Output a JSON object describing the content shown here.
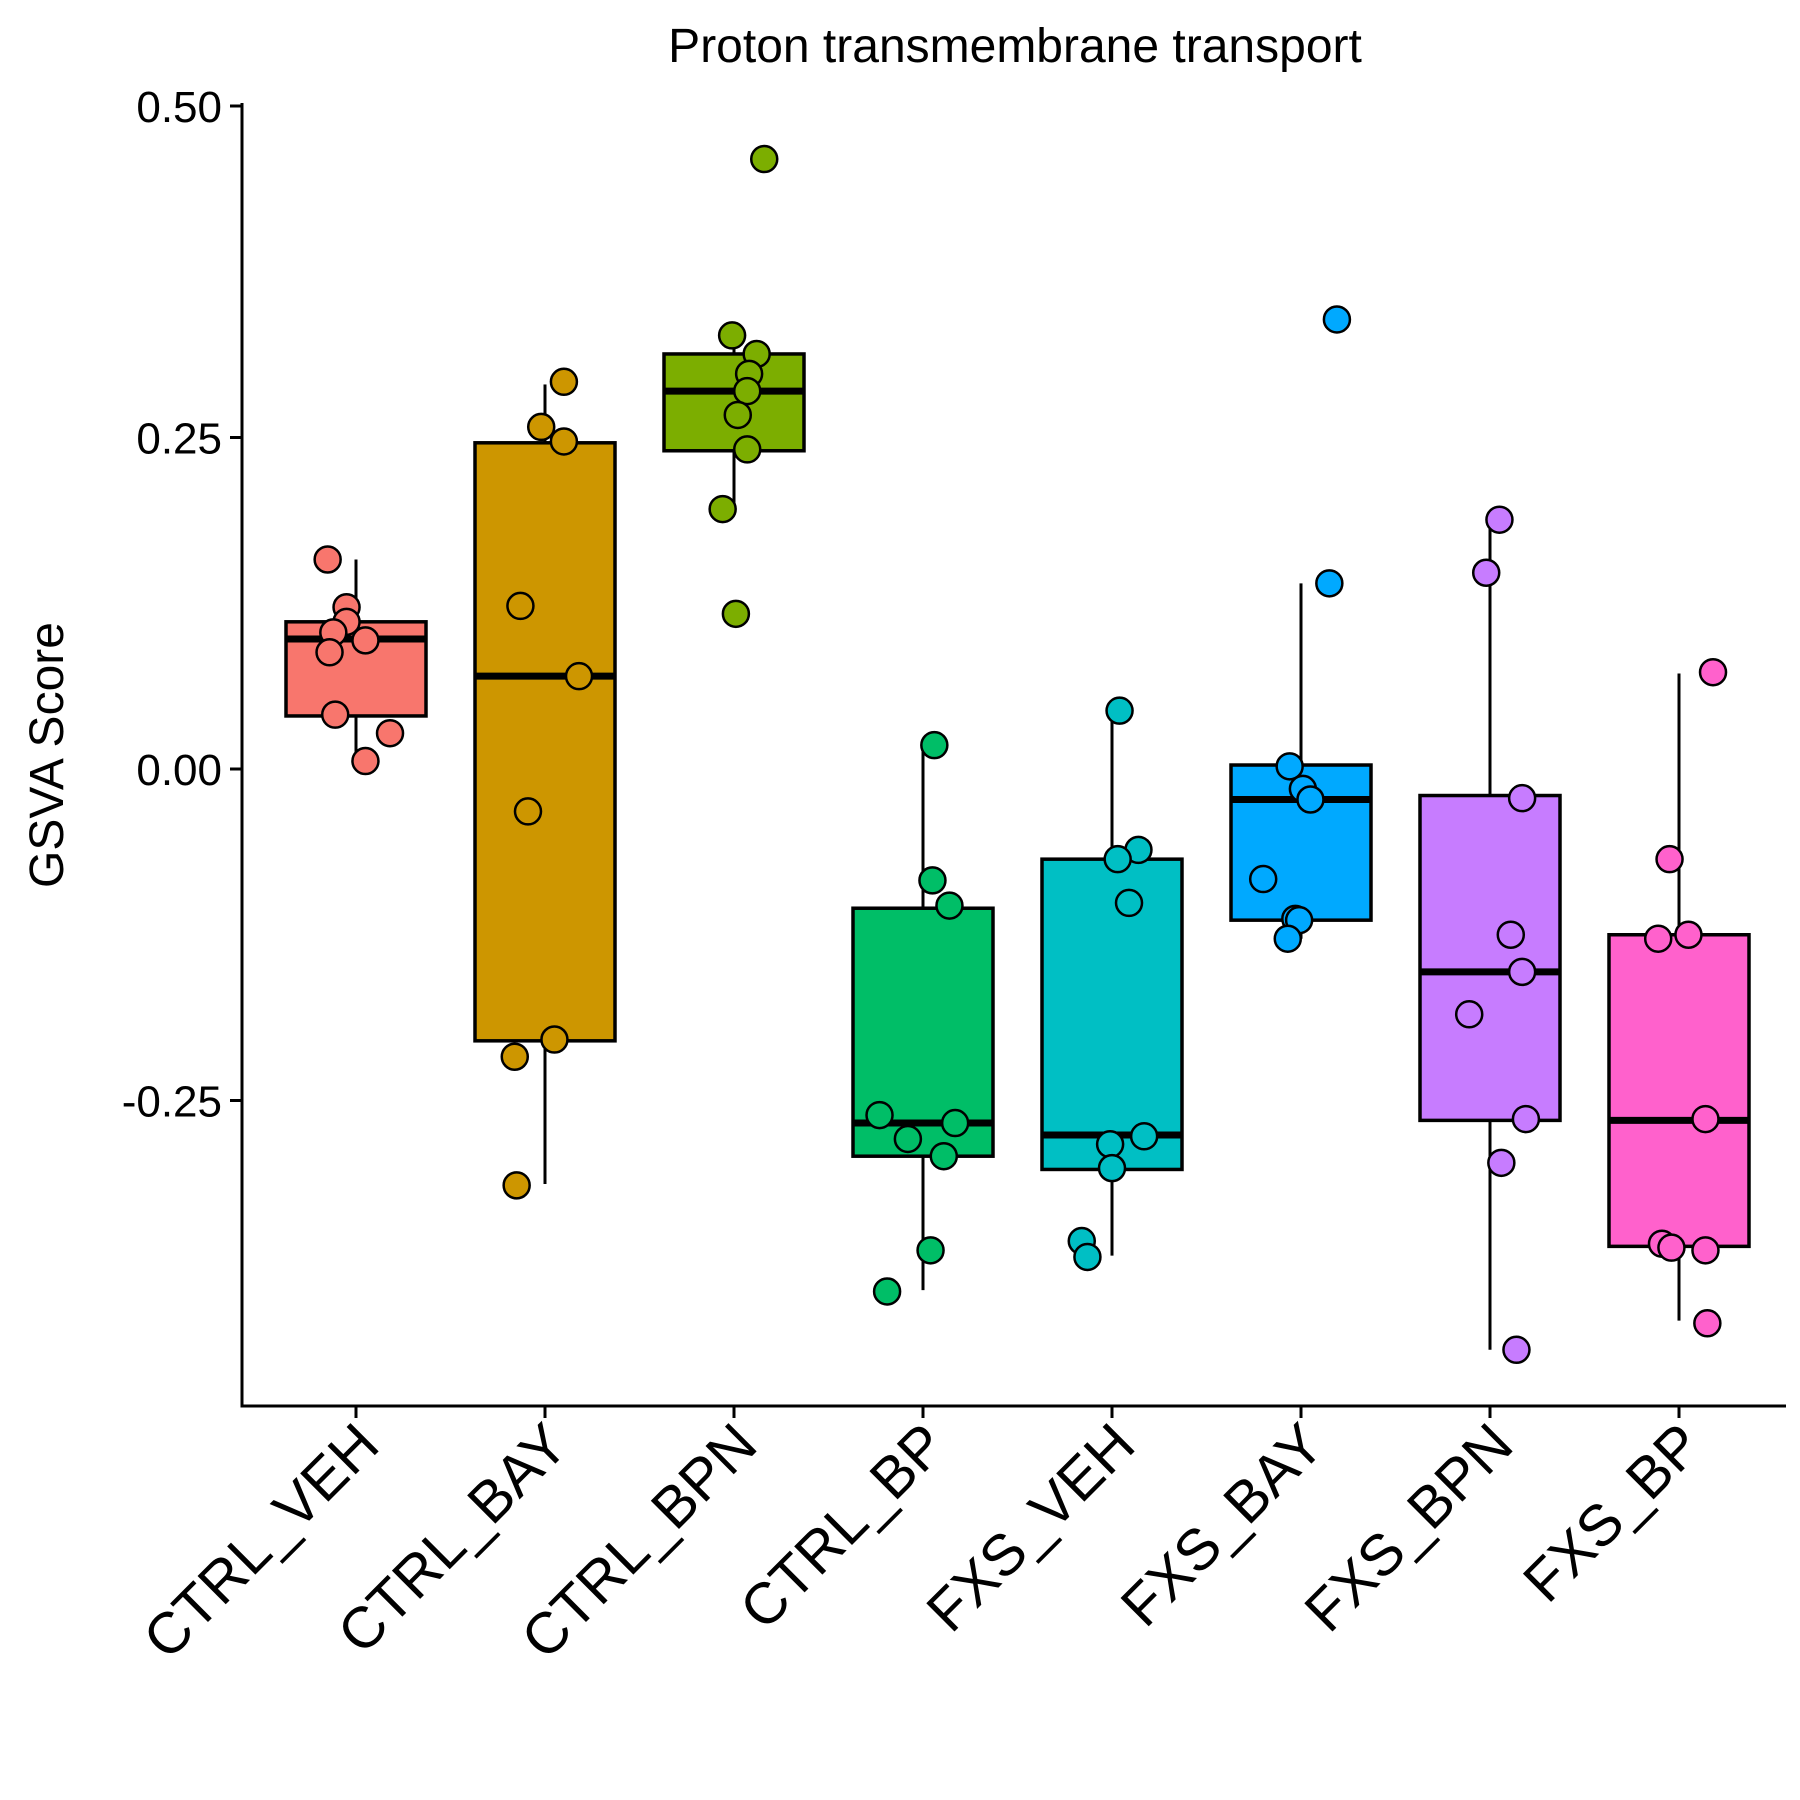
{
  "chart_data": {
    "type": "boxplot",
    "title": "Proton transmembrane transport",
    "xlabel": "",
    "ylabel": "GSVA Score",
    "ylim": [
      -0.48,
      0.5
    ],
    "yticks": [
      0.5,
      0.25,
      0.0,
      -0.25
    ],
    "ytick_labels": [
      "0.50",
      "0.25",
      "0.00",
      "-0.25"
    ],
    "grid": false,
    "legend": "none",
    "categories": [
      "CTRL_VEH",
      "CTRL_BAY",
      "CTRL_BPN",
      "CTRL_BP",
      "FXS_VEH",
      "FXS_BAY",
      "FXS_BPN",
      "FXS_BP"
    ],
    "colors": [
      "#F8766D",
      "#CD9600",
      "#7CAE00",
      "#00BE67",
      "#00BFC4",
      "#00A9FF",
      "#C77CFF",
      "#FF61CC"
    ],
    "boxes": [
      {
        "q1": 0.04,
        "median": 0.098,
        "q3": 0.111,
        "whisker_low": 0.008,
        "whisker_high": 0.158
      },
      {
        "q1": -0.205,
        "median": 0.07,
        "q3": 0.246,
        "whisker_low": -0.313,
        "whisker_high": 0.29
      },
      {
        "q1": 0.24,
        "median": 0.285,
        "q3": 0.313,
        "whisker_low": 0.195,
        "whisker_high": 0.33
      },
      {
        "q1": -0.292,
        "median": -0.267,
        "q3": -0.105,
        "whisker_low": -0.393,
        "whisker_high": 0.02
      },
      {
        "q1": -0.302,
        "median": -0.276,
        "q3": -0.068,
        "whisker_low": -0.367,
        "whisker_high": 0.045
      },
      {
        "q1": -0.114,
        "median": -0.023,
        "q3": 0.003,
        "whisker_low": -0.128,
        "whisker_high": 0.14
      },
      {
        "q1": -0.265,
        "median": -0.153,
        "q3": -0.02,
        "whisker_low": -0.438,
        "whisker_high": 0.188
      },
      {
        "q1": -0.36,
        "median": -0.265,
        "q3": -0.125,
        "whisker_low": -0.416,
        "whisker_high": 0.072
      }
    ],
    "points": [
      [
        {
          "dx": -0.15,
          "y": 0.158
        },
        {
          "dx": -0.05,
          "y": 0.122
        },
        {
          "dx": -0.05,
          "y": 0.111
        },
        {
          "dx": -0.12,
          "y": 0.103
        },
        {
          "dx": 0.05,
          "y": 0.097
        },
        {
          "dx": -0.14,
          "y": 0.088
        },
        {
          "dx": -0.11,
          "y": 0.041
        },
        {
          "dx": 0.18,
          "y": 0.027
        },
        {
          "dx": 0.05,
          "y": 0.006
        }
      ],
      [
        {
          "dx": 0.1,
          "y": 0.292
        },
        {
          "dx": -0.02,
          "y": 0.258
        },
        {
          "dx": 0.1,
          "y": 0.247
        },
        {
          "dx": -0.13,
          "y": 0.123
        },
        {
          "dx": 0.18,
          "y": 0.07
        },
        {
          "dx": -0.09,
          "y": -0.032
        },
        {
          "dx": 0.05,
          "y": -0.204
        },
        {
          "dx": -0.16,
          "y": -0.217
        },
        {
          "dx": -0.15,
          "y": -0.314
        }
      ],
      [
        {
          "dx": 0.16,
          "y": 0.46
        },
        {
          "dx": -0.01,
          "y": 0.327
        },
        {
          "dx": 0.12,
          "y": 0.313
        },
        {
          "dx": 0.08,
          "y": 0.298
        },
        {
          "dx": 0.07,
          "y": 0.285
        },
        {
          "dx": 0.02,
          "y": 0.267
        },
        {
          "dx": 0.07,
          "y": 0.241
        },
        {
          "dx": -0.06,
          "y": 0.196
        },
        {
          "dx": 0.01,
          "y": 0.117
        }
      ],
      [
        {
          "dx": 0.06,
          "y": 0.018
        },
        {
          "dx": 0.05,
          "y": -0.084
        },
        {
          "dx": 0.14,
          "y": -0.103
        },
        {
          "dx": -0.23,
          "y": -0.261
        },
        {
          "dx": 0.17,
          "y": -0.267
        },
        {
          "dx": -0.08,
          "y": -0.279
        },
        {
          "dx": 0.11,
          "y": -0.292
        },
        {
          "dx": 0.04,
          "y": -0.363
        },
        {
          "dx": -0.19,
          "y": -0.394
        }
      ],
      [
        {
          "dx": 0.04,
          "y": 0.044
        },
        {
          "dx": 0.14,
          "y": -0.061
        },
        {
          "dx": 0.03,
          "y": -0.068
        },
        {
          "dx": 0.09,
          "y": -0.101
        },
        {
          "dx": 0.17,
          "y": -0.277
        },
        {
          "dx": -0.01,
          "y": -0.283
        },
        {
          "dx": 0.0,
          "y": -0.301
        },
        {
          "dx": -0.16,
          "y": -0.356
        },
        {
          "dx": -0.13,
          "y": -0.368
        }
      ],
      [
        {
          "dx": 0.19,
          "y": 0.339
        },
        {
          "dx": 0.15,
          "y": 0.14
        },
        {
          "dx": -0.06,
          "y": 0.002
        },
        {
          "dx": 0.01,
          "y": -0.015
        },
        {
          "dx": 0.05,
          "y": -0.023
        },
        {
          "dx": -0.2,
          "y": -0.083
        },
        {
          "dx": -0.03,
          "y": -0.113
        },
        {
          "dx": -0.01,
          "y": -0.114
        },
        {
          "dx": -0.07,
          "y": -0.128
        }
      ],
      [
        {
          "dx": 0.05,
          "y": 0.188
        },
        {
          "dx": -0.02,
          "y": 0.148
        },
        {
          "dx": 0.17,
          "y": -0.022
        },
        {
          "dx": 0.11,
          "y": -0.125
        },
        {
          "dx": 0.17,
          "y": -0.153
        },
        {
          "dx": -0.11,
          "y": -0.185
        },
        {
          "dx": 0.19,
          "y": -0.264
        },
        {
          "dx": 0.06,
          "y": -0.297
        },
        {
          "dx": 0.14,
          "y": -0.438
        }
      ],
      [
        {
          "dx": 0.18,
          "y": 0.073
        },
        {
          "dx": -0.05,
          "y": -0.068
        },
        {
          "dx": -0.11,
          "y": -0.128
        },
        {
          "dx": 0.05,
          "y": -0.125
        },
        {
          "dx": 0.14,
          "y": -0.264
        },
        {
          "dx": -0.09,
          "y": -0.358
        },
        {
          "dx": -0.04,
          "y": -0.361
        },
        {
          "dx": 0.14,
          "y": -0.363
        },
        {
          "dx": 0.15,
          "y": -0.418
        }
      ]
    ]
  }
}
